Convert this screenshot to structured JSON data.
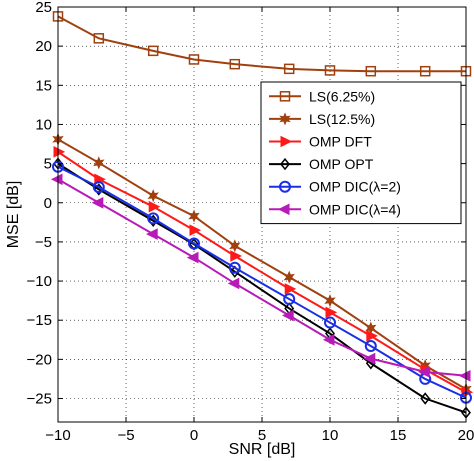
{
  "chart_data": {
    "type": "line",
    "xlabel": "SNR [dB]",
    "ylabel": "MSE [dB]",
    "xlim": [
      -10,
      20
    ],
    "ylim": [
      -28,
      25
    ],
    "xticks": [
      -10,
      -5,
      0,
      5,
      10,
      15,
      20
    ],
    "yticks": [
      -25,
      -20,
      -15,
      -10,
      -5,
      0,
      5,
      10,
      15,
      20,
      25
    ],
    "grid": true,
    "legend_position": "top-right",
    "x": [
      -10,
      -7,
      -3,
      0,
      3,
      7,
      10,
      13,
      17,
      20
    ],
    "series": [
      {
        "name": "LS(6.25%)",
        "color": "#a0400f",
        "marker": "square",
        "values": [
          23.8,
          21.0,
          19.4,
          18.3,
          17.7,
          17.1,
          16.9,
          16.8,
          16.8,
          16.8
        ]
      },
      {
        "name": "LS(12.5%)",
        "color": "#a0400f",
        "marker": "star",
        "values": [
          8.1,
          5.1,
          0.9,
          -1.7,
          -5.5,
          -9.5,
          -12.5,
          -16.0,
          -20.8,
          -23.8
        ]
      },
      {
        "name": "OMP DFT",
        "color": "#ff1a1a",
        "marker": "triangle-right",
        "values": [
          6.5,
          3.0,
          -0.5,
          -3.5,
          -6.8,
          -11.0,
          -14.0,
          -17.0,
          -21.3,
          -24.2
        ]
      },
      {
        "name": "OMP OPT",
        "color": "#000000",
        "marker": "diamond",
        "values": [
          5.0,
          1.7,
          -2.3,
          -5.3,
          -8.8,
          -13.5,
          -16.7,
          -20.5,
          -25.0,
          -26.8
        ]
      },
      {
        "name": "OMP DIC(λ=2)",
        "color": "#1a2ee6",
        "marker": "circle",
        "values": [
          4.6,
          2.0,
          -2.0,
          -5.2,
          -8.3,
          -12.3,
          -15.3,
          -18.3,
          -22.5,
          -24.9
        ]
      },
      {
        "name": "OMP DIC(λ=4)",
        "color": "#b81ab8",
        "marker": "triangle-left",
        "values": [
          3.0,
          0.0,
          -4.0,
          -7.0,
          -10.3,
          -14.4,
          -17.5,
          -19.9,
          -21.6,
          -22.1
        ]
      }
    ]
  }
}
